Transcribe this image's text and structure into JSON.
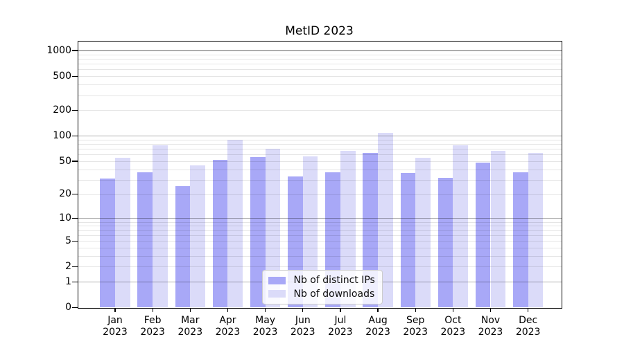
{
  "figure": {
    "background": "#ffffff"
  },
  "chart_data": {
    "type": "bar",
    "title": "MetID 2023",
    "x": {
      "months": [
        "Jan",
        "Feb",
        "Mar",
        "Apr",
        "May",
        "Jun",
        "Jul",
        "Aug",
        "Sep",
        "Oct",
        "Nov",
        "Dec"
      ],
      "year": "2023"
    },
    "series": [
      {
        "name": "Nb of distinct IPs",
        "color": "#a8a8f7",
        "values": [
          31,
          37,
          25,
          52,
          56,
          33,
          37,
          63,
          36,
          32,
          48,
          37
        ]
      },
      {
        "name": "Nb of downloads",
        "color": "#dbdbf9",
        "values": [
          55,
          78,
          45,
          90,
          70,
          57,
          67,
          108,
          55,
          78,
          67,
          63
        ]
      }
    ],
    "y_axis": {
      "scale": "log1p",
      "tick_values": [
        1000,
        500,
        200,
        100,
        50,
        20,
        10,
        5,
        2,
        1,
        0
      ],
      "tick_labels": [
        "1000",
        "500",
        "200",
        "100",
        "50",
        "20",
        "10",
        "5",
        "2",
        "1",
        "0"
      ],
      "major_grid_values": [
        1,
        10,
        100,
        1000
      ],
      "minor_grid_values": [
        2,
        3,
        4,
        5,
        6,
        7,
        8,
        9,
        20,
        30,
        40,
        50,
        60,
        70,
        80,
        90,
        200,
        300,
        400,
        500,
        600,
        700,
        800,
        900
      ],
      "ylim": [
        0,
        1270
      ],
      "grid": "on"
    },
    "xlabel": "",
    "ylabel": "",
    "legend": {
      "position": "lower-center-inside"
    }
  },
  "colors": {
    "bar_distinct_ips": "#a8a8f7",
    "bar_downloads": "#dbdbf9",
    "major_grid": "rgba(0,0,0,0.32)",
    "minor_grid": "rgba(0,0,0,0.10)",
    "spine": "#000000",
    "legend_border": "#cccccc",
    "legend_background": "rgba(255,255,255,0.82)"
  }
}
